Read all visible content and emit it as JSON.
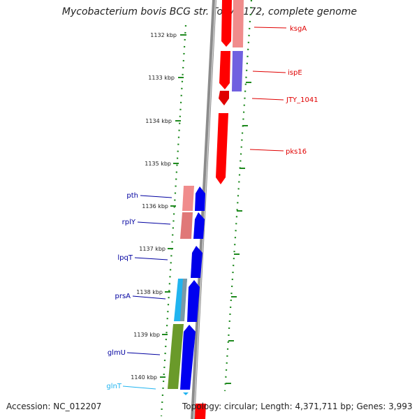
{
  "title": "Mycobacterium bovis BCG str. Tokyo 172, complete genome",
  "footer": {
    "accession": "Accession: NC_012207",
    "summary": "Topology: circular; Length: 4,371,711 bp; Genes: 3,993"
  },
  "colors": {
    "spine": "#8c8c8c",
    "tick": "#1f8a1f",
    "gene_red": "#ff0000",
    "gene_pink": "#f08c8c",
    "gene_purple": "#7060e0",
    "gene_blue": "#0000f0",
    "gene_cyan": "#20b4f0",
    "gene_olive": "#6a9a2a",
    "label_red": "#e00000",
    "label_blue": "#0000a0",
    "label_cyan": "#20b4f0"
  },
  "scale_labels": [
    "1132 kbp",
    "1133 kbp",
    "1134 kbp",
    "1135 kbp",
    "1136 kbp",
    "1137 kbp",
    "1138 kbp",
    "1139 kbp",
    "1140 kbp"
  ],
  "genes": [
    {
      "name": "ksgA",
      "strand": "+"
    },
    {
      "name": "ispE",
      "strand": "+"
    },
    {
      "name": "JTY_1041",
      "strand": "+"
    },
    {
      "name": "pks16",
      "strand": "+"
    },
    {
      "name": "pth",
      "strand": "-"
    },
    {
      "name": "rplY",
      "strand": "-"
    },
    {
      "name": "lpqT",
      "strand": "-"
    },
    {
      "name": "prsA",
      "strand": "-"
    },
    {
      "name": "glmU",
      "strand": "-"
    },
    {
      "name": "glnT",
      "strand": "-"
    }
  ]
}
